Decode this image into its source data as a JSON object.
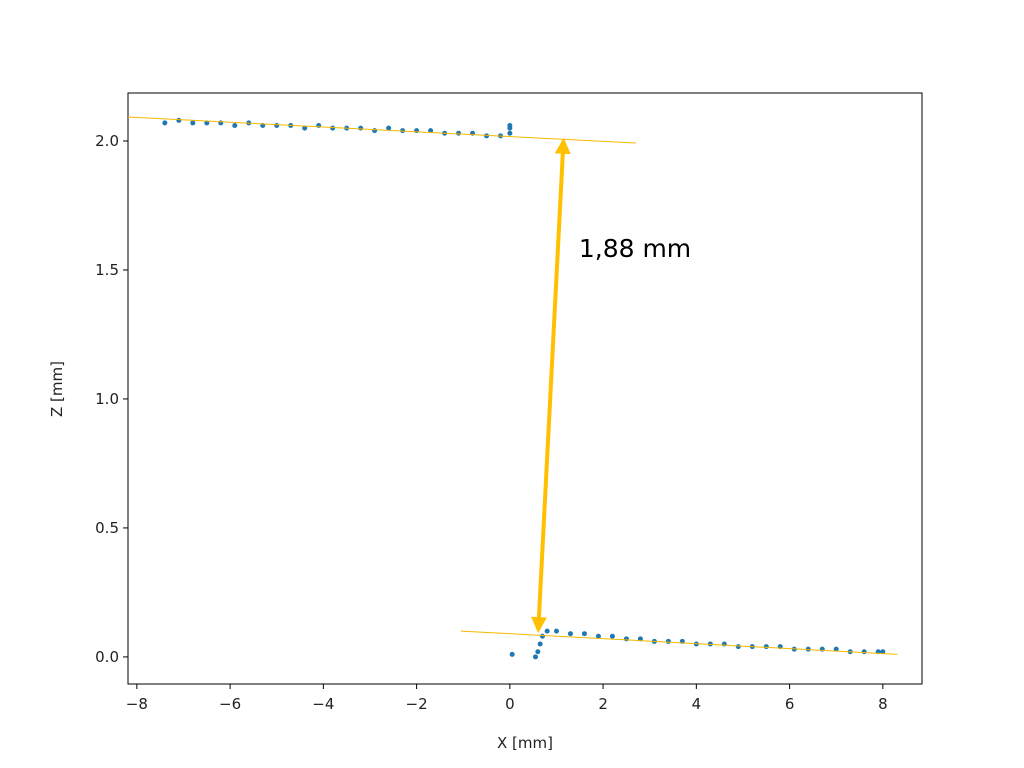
{
  "chart_data": {
    "type": "scatter",
    "xlabel": "X [mm]",
    "ylabel": "Z [mm]",
    "xlim": [
      -8.19,
      8.84
    ],
    "ylim": [
      -0.105,
      2.186
    ],
    "xticks": [
      {
        "value": -8,
        "label": "−8"
      },
      {
        "value": -6,
        "label": "−6"
      },
      {
        "value": -4,
        "label": "−4"
      },
      {
        "value": -2,
        "label": "−2"
      },
      0,
      2,
      4,
      6,
      8
    ],
    "yticks": [
      {
        "value": 0,
        "label": "0.0"
      },
      0.5,
      {
        "value": 1,
        "label": "1.0"
      },
      1.5,
      {
        "value": 2,
        "label": "2.0"
      }
    ],
    "series": [
      {
        "type": "scatter",
        "color": "#1f77b4",
        "x": [
          -7.4,
          -7.1,
          -6.8,
          -6.5,
          -6.2,
          -5.9,
          -5.6,
          -5.3,
          -5.0,
          -4.7,
          -4.4,
          -4.1,
          -3.8,
          -3.5,
          -3.2,
          -2.9,
          -2.6,
          -2.3,
          -2.0,
          -1.7,
          -1.4,
          -1.1,
          -0.8,
          -0.5,
          -0.2,
          0.0,
          0.0,
          0.0,
          0.05,
          0.55,
          0.6,
          0.65,
          0.7,
          0.8,
          1.0,
          1.3,
          1.6,
          1.9,
          2.2,
          2.5,
          2.8,
          3.1,
          3.4,
          3.7,
          4.0,
          4.3,
          4.6,
          4.9,
          5.2,
          5.5,
          5.8,
          6.1,
          6.4,
          6.7,
          7.0,
          7.3,
          7.6,
          7.9,
          8.0
        ],
        "values": [
          2.07,
          2.08,
          2.07,
          2.07,
          2.07,
          2.06,
          2.07,
          2.06,
          2.06,
          2.06,
          2.05,
          2.06,
          2.05,
          2.05,
          2.05,
          2.04,
          2.05,
          2.04,
          2.04,
          2.04,
          2.03,
          2.03,
          2.03,
          2.02,
          2.02,
          2.03,
          2.05,
          2.06,
          0.01,
          0.0,
          0.02,
          0.05,
          0.08,
          0.1,
          0.1,
          0.09,
          0.09,
          0.08,
          0.08,
          0.07,
          0.07,
          0.06,
          0.06,
          0.06,
          0.05,
          0.05,
          0.05,
          0.04,
          0.04,
          0.04,
          0.04,
          0.03,
          0.03,
          0.03,
          0.03,
          0.02,
          0.02,
          0.02,
          0.02
        ]
      },
      {
        "type": "line",
        "color": "#f5b800",
        "x": [
          -8.19,
          2.71
        ],
        "values": [
          2.093,
          1.992
        ]
      },
      {
        "type": "line",
        "color": "#f5b800",
        "x": [
          -1.05,
          8.31
        ],
        "values": [
          0.1,
          0.01
        ]
      }
    ],
    "arrow": {
      "color": "#ffc000",
      "x": [
        1.15,
        0.61
      ],
      "y": [
        2.0,
        0.105
      ]
    },
    "annotation": {
      "text": "1,88 mm",
      "x": 1.48,
      "y": 1.55
    }
  }
}
